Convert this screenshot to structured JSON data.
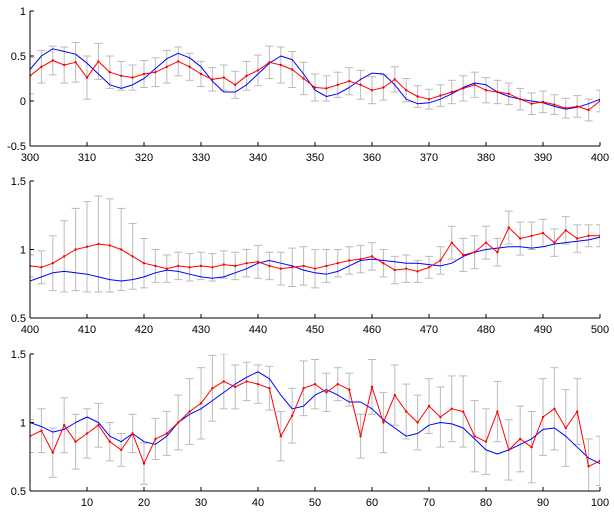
{
  "chart_data": [
    {
      "type": "line",
      "xlim": [
        300,
        400
      ],
      "ylim": [
        -0.5,
        1
      ],
      "xticks": [
        "300",
        "310",
        "320",
        "330",
        "340",
        "350",
        "360",
        "370",
        "380",
        "390",
        "400"
      ],
      "yticks": [
        "-0.5",
        "0",
        "0.5",
        "1"
      ],
      "grid": false,
      "series": [
        {
          "kind": "smooth",
          "color": "#0000ff",
          "x": [
            300,
            302,
            304,
            306,
            308,
            310,
            312,
            314,
            316,
            318,
            320,
            322,
            324,
            326,
            328,
            330,
            332,
            334,
            336,
            338,
            340,
            342,
            344,
            346,
            348,
            350,
            352,
            354,
            356,
            358,
            360,
            362,
            364,
            366,
            368,
            370,
            372,
            374,
            376,
            378,
            380,
            382,
            384,
            386,
            388,
            390,
            392,
            394,
            396,
            398,
            400
          ],
          "y": [
            0.35,
            0.5,
            0.58,
            0.55,
            0.52,
            0.42,
            0.3,
            0.18,
            0.14,
            0.18,
            0.25,
            0.36,
            0.47,
            0.53,
            0.48,
            0.38,
            0.22,
            0.1,
            0.1,
            0.18,
            0.3,
            0.42,
            0.5,
            0.46,
            0.3,
            0.12,
            0.05,
            0.08,
            0.15,
            0.24,
            0.31,
            0.3,
            0.18,
            0.02,
            -0.03,
            -0.02,
            0.02,
            0.08,
            0.15,
            0.2,
            0.18,
            0.1,
            0.05,
            0.02,
            0.0,
            -0.02,
            -0.06,
            -0.09,
            -0.07,
            -0.03,
            0.02
          ]
        },
        {
          "kind": "noisy",
          "color": "#ff0000",
          "err_color": "#bbbbbb",
          "x": [
            300,
            302,
            304,
            306,
            308,
            310,
            312,
            314,
            316,
            318,
            320,
            322,
            324,
            326,
            328,
            330,
            332,
            334,
            336,
            338,
            340,
            342,
            344,
            346,
            348,
            350,
            352,
            354,
            356,
            358,
            360,
            362,
            364,
            366,
            368,
            370,
            372,
            374,
            376,
            378,
            380,
            382,
            384,
            386,
            388,
            390,
            392,
            394,
            396,
            398,
            400
          ],
          "y": [
            0.28,
            0.38,
            0.45,
            0.4,
            0.43,
            0.26,
            0.44,
            0.32,
            0.28,
            0.26,
            0.3,
            0.32,
            0.38,
            0.44,
            0.38,
            0.3,
            0.24,
            0.26,
            0.18,
            0.28,
            0.34,
            0.43,
            0.4,
            0.35,
            0.25,
            0.15,
            0.14,
            0.18,
            0.22,
            0.18,
            0.12,
            0.15,
            0.24,
            0.12,
            0.05,
            0.02,
            0.06,
            0.1,
            0.14,
            0.18,
            0.12,
            0.1,
            0.08,
            0.02,
            -0.03,
            -0.01,
            -0.04,
            -0.08,
            -0.06,
            -0.1,
            0.0
          ],
          "err": [
            0.2,
            0.18,
            0.16,
            0.2,
            0.22,
            0.24,
            0.2,
            0.18,
            0.16,
            0.14,
            0.15,
            0.16,
            0.18,
            0.16,
            0.15,
            0.14,
            0.13,
            0.14,
            0.15,
            0.16,
            0.17,
            0.18,
            0.2,
            0.2,
            0.18,
            0.15,
            0.14,
            0.14,
            0.15,
            0.16,
            0.15,
            0.14,
            0.14,
            0.13,
            0.12,
            0.11,
            0.12,
            0.13,
            0.14,
            0.14,
            0.14,
            0.13,
            0.12,
            0.12,
            0.12,
            0.12,
            0.11,
            0.11,
            0.12,
            0.12,
            0.12
          ]
        }
      ]
    },
    {
      "type": "line",
      "xlim": [
        400,
        500
      ],
      "ylim": [
        0.5,
        1.5
      ],
      "xticks": [
        "400",
        "410",
        "420",
        "430",
        "440",
        "450",
        "460",
        "470",
        "480",
        "490",
        "500"
      ],
      "yticks": [
        "0.5",
        "1",
        "1.5"
      ],
      "grid": false,
      "series": [
        {
          "kind": "smooth",
          "color": "#0000ff",
          "x": [
            400,
            402,
            404,
            406,
            408,
            410,
            412,
            414,
            416,
            418,
            420,
            422,
            424,
            426,
            428,
            430,
            432,
            434,
            436,
            438,
            440,
            442,
            444,
            446,
            448,
            450,
            452,
            454,
            456,
            458,
            460,
            462,
            464,
            466,
            468,
            470,
            472,
            474,
            476,
            478,
            480,
            482,
            484,
            486,
            488,
            490,
            492,
            494,
            496,
            498,
            500
          ],
          "y": [
            0.77,
            0.8,
            0.83,
            0.84,
            0.83,
            0.82,
            0.8,
            0.78,
            0.77,
            0.78,
            0.8,
            0.83,
            0.85,
            0.84,
            0.82,
            0.8,
            0.79,
            0.8,
            0.83,
            0.86,
            0.9,
            0.92,
            0.9,
            0.88,
            0.85,
            0.83,
            0.82,
            0.84,
            0.88,
            0.92,
            0.93,
            0.92,
            0.91,
            0.9,
            0.9,
            0.89,
            0.88,
            0.9,
            0.95,
            0.98,
            1.0,
            1.01,
            1.02,
            1.02,
            1.01,
            1.02,
            1.04,
            1.05,
            1.06,
            1.07,
            1.09
          ]
        },
        {
          "kind": "noisy",
          "color": "#ff0000",
          "err_color": "#bbbbbb",
          "x": [
            400,
            402,
            404,
            406,
            408,
            410,
            412,
            414,
            416,
            418,
            420,
            422,
            424,
            426,
            428,
            430,
            432,
            434,
            436,
            438,
            440,
            442,
            444,
            446,
            448,
            450,
            452,
            454,
            456,
            458,
            460,
            462,
            464,
            466,
            468,
            470,
            472,
            474,
            476,
            478,
            480,
            482,
            484,
            486,
            488,
            490,
            492,
            494,
            496,
            498,
            500
          ],
          "y": [
            0.88,
            0.87,
            0.9,
            0.95,
            1.0,
            1.02,
            1.04,
            1.03,
            1.0,
            0.95,
            0.9,
            0.88,
            0.86,
            0.88,
            0.87,
            0.88,
            0.87,
            0.89,
            0.88,
            0.9,
            0.91,
            0.88,
            0.86,
            0.87,
            0.88,
            0.86,
            0.88,
            0.9,
            0.92,
            0.93,
            0.95,
            0.9,
            0.85,
            0.86,
            0.84,
            0.87,
            0.92,
            1.05,
            0.96,
            0.98,
            1.05,
            0.98,
            1.16,
            1.08,
            1.1,
            1.12,
            1.05,
            1.14,
            1.08,
            1.1,
            1.1
          ],
          "err": [
            0.08,
            0.12,
            0.2,
            0.26,
            0.3,
            0.33,
            0.35,
            0.34,
            0.3,
            0.24,
            0.18,
            0.12,
            0.1,
            0.1,
            0.1,
            0.1,
            0.1,
            0.1,
            0.1,
            0.1,
            0.12,
            0.1,
            0.12,
            0.14,
            0.14,
            0.14,
            0.12,
            0.1,
            0.1,
            0.1,
            0.1,
            0.1,
            0.1,
            0.1,
            0.08,
            0.08,
            0.1,
            0.12,
            0.12,
            0.12,
            0.12,
            0.1,
            0.12,
            0.12,
            0.1,
            0.1,
            0.1,
            0.1,
            0.1,
            0.08,
            0.08
          ]
        }
      ]
    },
    {
      "type": "line",
      "xlim": [
        0,
        100
      ],
      "ylim": [
        0.5,
        1.5
      ],
      "xticks": [
        "10",
        "20",
        "30",
        "40",
        "50",
        "60",
        "70",
        "80",
        "90",
        "100"
      ],
      "yticks": [
        "0.5",
        "1",
        "1.5"
      ],
      "grid": false,
      "series": [
        {
          "kind": "smooth",
          "color": "#0000ff",
          "x": [
            0,
            2,
            4,
            6,
            8,
            10,
            12,
            14,
            16,
            18,
            20,
            22,
            24,
            26,
            28,
            30,
            32,
            34,
            36,
            38,
            40,
            42,
            44,
            46,
            48,
            50,
            52,
            54,
            56,
            58,
            60,
            62,
            64,
            66,
            68,
            70,
            72,
            74,
            76,
            78,
            80,
            82,
            84,
            86,
            88,
            90,
            92,
            94,
            96,
            98,
            100
          ],
          "y": [
            1.0,
            0.97,
            0.93,
            0.95,
            1.0,
            1.04,
            1.0,
            0.9,
            0.86,
            0.92,
            0.86,
            0.84,
            0.9,
            1.0,
            1.06,
            1.1,
            1.16,
            1.22,
            1.28,
            1.33,
            1.37,
            1.32,
            1.2,
            1.1,
            1.12,
            1.2,
            1.24,
            1.2,
            1.15,
            1.15,
            1.1,
            1.02,
            0.96,
            0.9,
            0.92,
            0.98,
            1.0,
            0.99,
            0.96,
            0.88,
            0.8,
            0.77,
            0.8,
            0.84,
            0.88,
            0.95,
            0.96,
            0.9,
            0.82,
            0.74,
            0.7
          ]
        },
        {
          "kind": "noisy",
          "color": "#ff0000",
          "err_color": "#bbbbbb",
          "x": [
            0,
            2,
            4,
            6,
            8,
            10,
            12,
            14,
            16,
            18,
            20,
            22,
            24,
            26,
            28,
            30,
            32,
            34,
            36,
            38,
            40,
            42,
            44,
            46,
            48,
            50,
            52,
            54,
            56,
            58,
            60,
            62,
            64,
            66,
            68,
            70,
            72,
            74,
            76,
            78,
            80,
            82,
            84,
            86,
            88,
            90,
            92,
            94,
            96,
            98,
            100
          ],
          "y": [
            0.9,
            0.94,
            0.78,
            0.98,
            0.86,
            0.92,
            0.98,
            0.86,
            0.8,
            0.92,
            0.7,
            0.88,
            0.92,
            1.0,
            1.08,
            1.14,
            1.25,
            1.3,
            1.26,
            1.3,
            1.28,
            1.25,
            0.9,
            1.05,
            1.25,
            1.28,
            1.22,
            1.28,
            1.24,
            0.9,
            1.26,
            1.0,
            1.2,
            1.08,
            1.0,
            1.12,
            1.04,
            1.1,
            1.08,
            0.9,
            0.86,
            1.08,
            0.8,
            0.88,
            0.82,
            1.04,
            1.1,
            0.96,
            1.08,
            0.68,
            0.72
          ],
          "err": [
            0.12,
            0.16,
            0.18,
            0.2,
            0.2,
            0.18,
            0.16,
            0.14,
            0.12,
            0.14,
            0.15,
            0.15,
            0.16,
            0.2,
            0.24,
            0.26,
            0.24,
            0.2,
            0.16,
            0.14,
            0.14,
            0.16,
            0.18,
            0.2,
            0.2,
            0.18,
            0.14,
            0.12,
            0.12,
            0.16,
            0.2,
            0.22,
            0.22,
            0.2,
            0.2,
            0.2,
            0.22,
            0.24,
            0.26,
            0.26,
            0.24,
            0.22,
            0.22,
            0.24,
            0.26,
            0.28,
            0.3,
            0.28,
            0.24,
            0.2,
            0.18
          ]
        }
      ]
    }
  ]
}
